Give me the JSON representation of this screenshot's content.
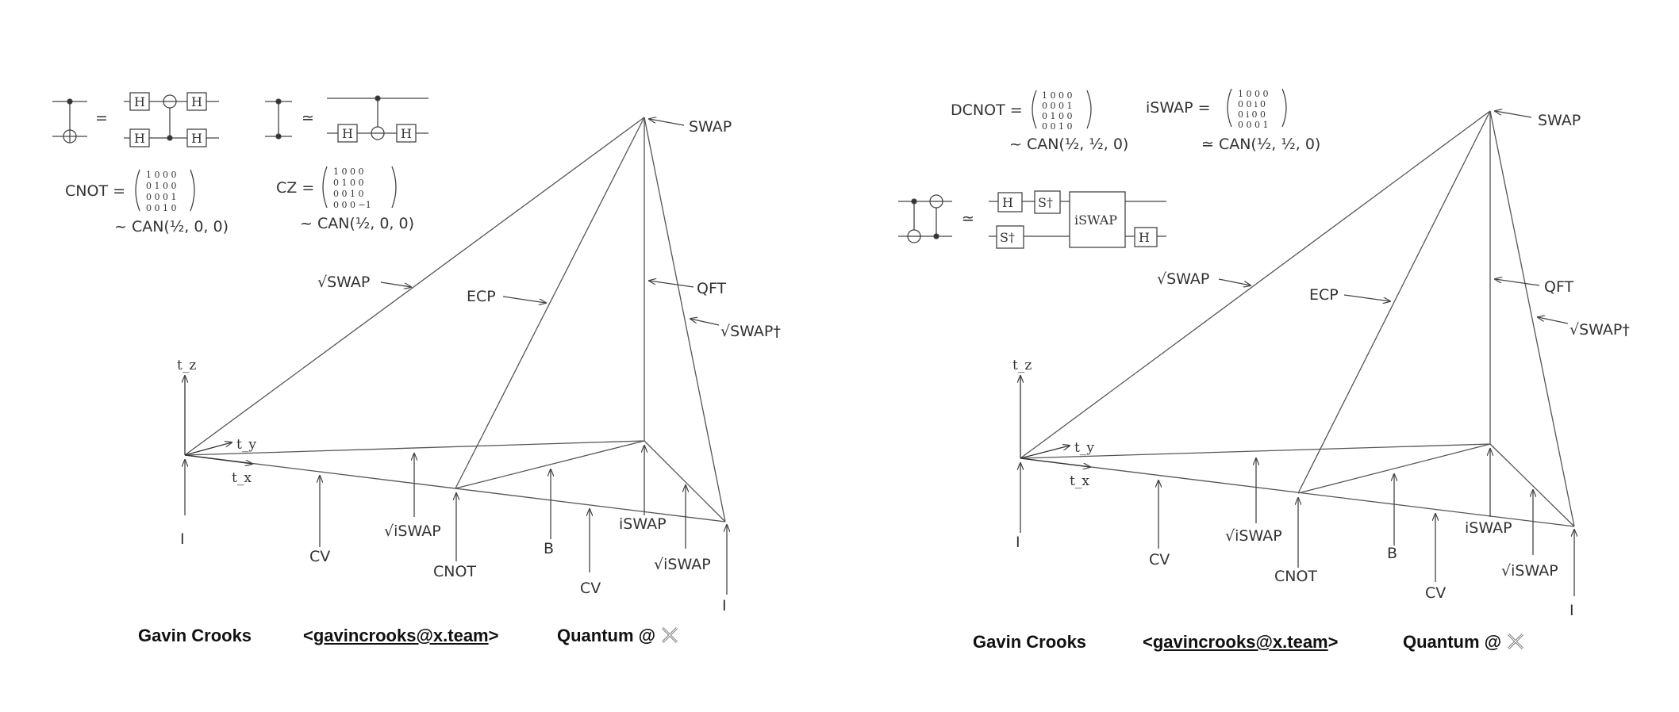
{
  "panels": [
    {
      "vertex_labels": {
        "swap": "SWAP",
        "qft": "QFT",
        "sqrt_swap": "√SWAP",
        "sqrt_swap_dag": "√SWAP†",
        "ecp": "ECP",
        "i_origin": "I",
        "i_corner": "I",
        "cv": "CV",
        "cv2": "CV",
        "sqrt_iswap": "√iSWAP",
        "sqrt_iswap2": "√iSWAP",
        "cnot": "CNOT",
        "b": "B",
        "iswap": "iSWAP"
      },
      "axes": {
        "tz": "t_z",
        "ty": "t_y",
        "tx": "t_x"
      },
      "left_formula": {
        "name": "CNOT =",
        "rows": [
          "1 0 0 0",
          "0 1 0 0",
          "0 0 0 1",
          "0 0 1 0"
        ],
        "can": "~ CAN(½, 0, 0)"
      },
      "right_formula": {
        "name": "CZ =",
        "rows": [
          "1 0 0 0",
          "0 1 0 0",
          "0 0 1 0",
          "0 0 0 −1"
        ],
        "can": "~ CAN(½, 0, 0)"
      },
      "circuit_symbols": {
        "equals": "=",
        "similar": "≃",
        "gate_h": "H"
      }
    },
    {
      "vertex_labels": {
        "swap": "SWAP",
        "qft": "QFT",
        "sqrt_swap": "√SWAP",
        "sqrt_swap_dag": "√SWAP†",
        "ecp": "ECP",
        "i_origin": "I",
        "i_corner": "I",
        "cv": "CV",
        "cv2": "CV",
        "sqrt_iswap": "√iSWAP",
        "sqrt_iswap2": "√iSWAP",
        "cnot": "CNOT",
        "b": "B",
        "iswap": "iSWAP"
      },
      "axes": {
        "tz": "t_z",
        "ty": "t_y",
        "tx": "t_x"
      },
      "left_formula": {
        "name": "DCNOT =",
        "rows": [
          "1 0 0 0",
          "0 0 0 1",
          "0 1 0 0",
          "0 0 1 0"
        ],
        "can": "~ CAN(½, ½, 0)"
      },
      "right_formula": {
        "name": "iSWAP =",
        "rows": [
          "1 0 0 0",
          "0 0 i 0",
          "0 i 0 0",
          "0 0 0 1"
        ],
        "can": "≃ CAN(½, ½, 0)"
      },
      "circuit_symbols": {
        "similar": "≃",
        "gate_h": "H",
        "gate_sdag": "S†",
        "gate_iswap": "iSWAP"
      }
    }
  ],
  "footer": {
    "name": "Gavin Crooks",
    "email": "gavincrooks@x.team",
    "lt": "<",
    "gt": ">",
    "org": "Quantum @"
  },
  "colors": {
    "line": "#444444",
    "text": "#333333"
  }
}
